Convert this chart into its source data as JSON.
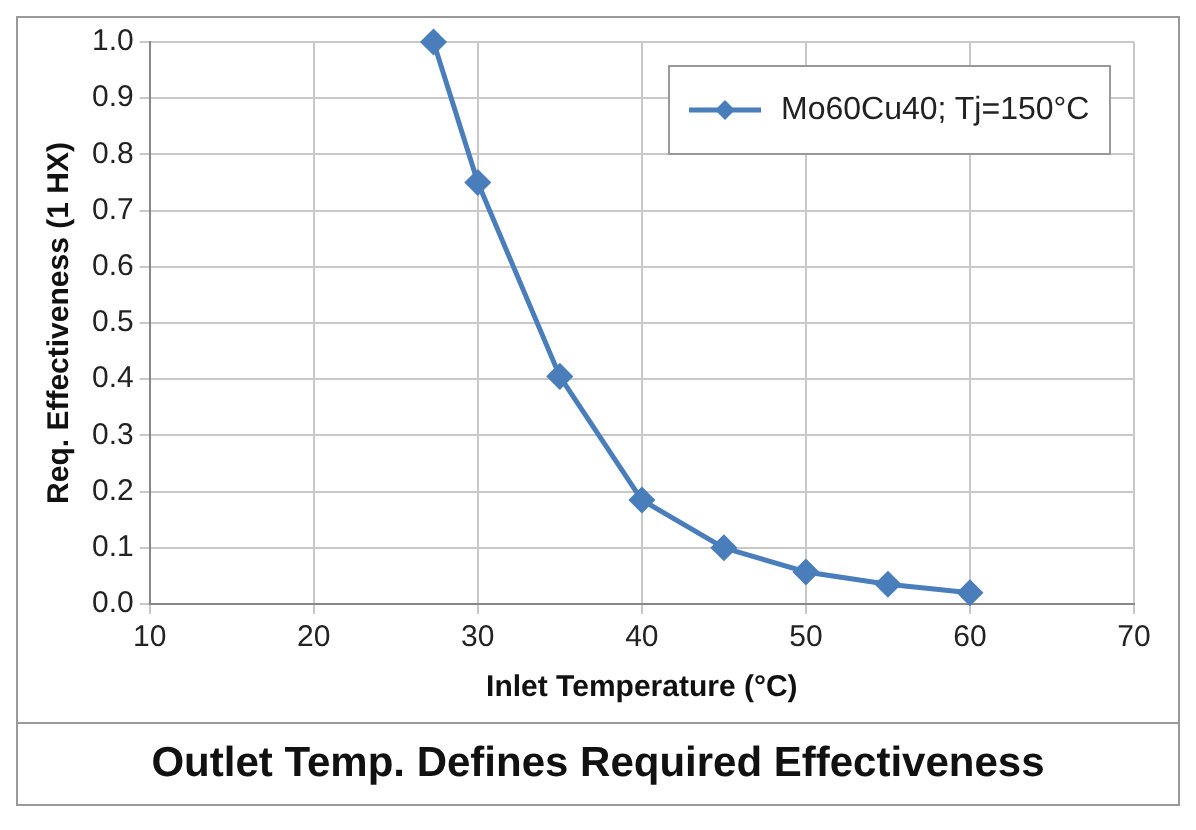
{
  "chart_data": {
    "type": "line",
    "title": "Outlet Temp. Defines Required Effectiveness",
    "xlabel": "Inlet Temperature (°C)",
    "ylabel": "Req. Effectiveness (1 HX)",
    "series": [
      {
        "name": "Mo60Cu40; Tj=150°C",
        "color": "#4a7ebb",
        "x": [
          27.3,
          30,
          35,
          40,
          45,
          50,
          55,
          60
        ],
        "values": [
          1.0,
          0.75,
          0.405,
          0.185,
          0.1,
          0.057,
          0.035,
          0.02
        ]
      }
    ],
    "xlim": [
      10,
      70
    ],
    "xticks": [
      10,
      20,
      30,
      40,
      50,
      60,
      70
    ],
    "ylim": [
      0,
      1
    ],
    "yticks": [
      {
        "value": 0,
        "label": "0.0"
      },
      {
        "value": 0.1,
        "label": "0.1"
      },
      {
        "value": 0.2,
        "label": "0.2"
      },
      {
        "value": 0.3,
        "label": "0.3"
      },
      {
        "value": 0.4,
        "label": "0.4"
      },
      {
        "value": 0.5,
        "label": "0.5"
      },
      {
        "value": 0.6,
        "label": "0.6"
      },
      {
        "value": 0.7,
        "label": "0.7"
      },
      {
        "value": 0.8,
        "label": "0.8"
      },
      {
        "value": 0.9,
        "label": "0.9"
      },
      {
        "value": 1,
        "label": "1.0"
      }
    ],
    "grid": true,
    "legend": "top right",
    "marker": "diamond",
    "line_style": "solid"
  }
}
